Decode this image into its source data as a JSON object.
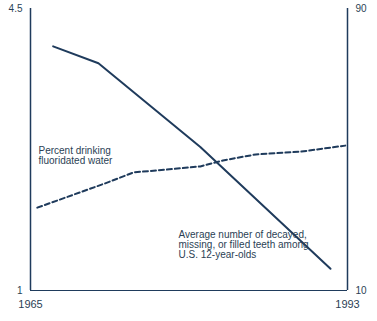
{
  "chart_data": {
    "type": "line",
    "xlim": [
      1965,
      1993
    ],
    "xticks": [
      1965,
      1993
    ],
    "ylim": [
      1,
      4.5
    ],
    "yticks": [
      1,
      4.5
    ],
    "y2lim": [
      10,
      90
    ],
    "y2ticks": [
      10,
      90
    ],
    "series": [
      {
        "name": "Average number of decayed, missing, or filled teeth among U.S. 12-year-olds",
        "color": "#1f3b5c",
        "line_style": "solid",
        "x": [
          1967,
          1971,
          1980,
          1991.5
        ],
        "values": [
          4.03,
          3.82,
          2.78,
          1.27
        ]
      },
      {
        "name": "Percent drinking fluoridated water",
        "color": "#1f3b5c",
        "line_style": "dashed",
        "axis": "y2",
        "x": [
          1965.6,
          1971.6,
          1974.1,
          1977,
          1980,
          1982,
          1984.9,
          1988.9,
          1992.8
        ],
        "values": [
          33.5,
          40.4,
          43.5,
          44.3,
          45.2,
          46.9,
          48.6,
          49.4,
          51.1
        ]
      }
    ]
  }
}
